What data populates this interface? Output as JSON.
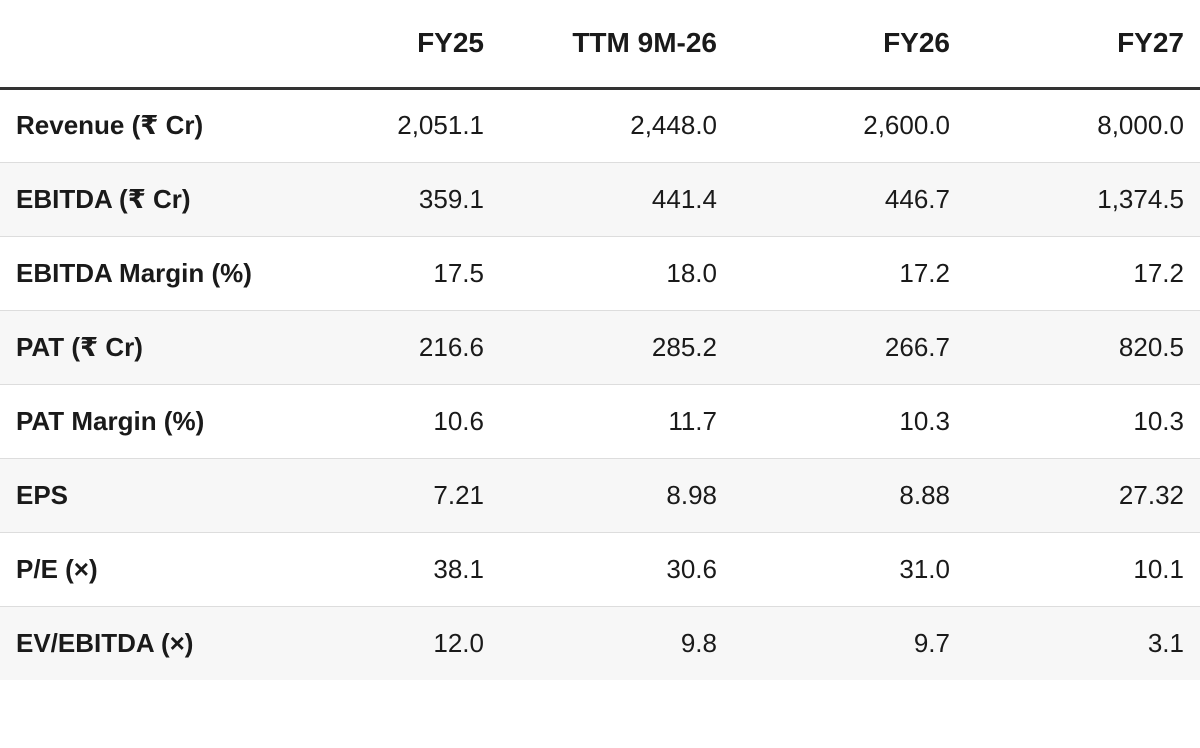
{
  "table": {
    "headers": [
      "",
      "FY25",
      "TTM 9M-26",
      "FY26",
      "FY27"
    ],
    "rows": [
      {
        "label": "Revenue (₹ Cr)",
        "values": [
          "2,051.1",
          "2,448.0",
          "2,600.0",
          "8,000.0"
        ]
      },
      {
        "label": "EBITDA (₹ Cr)",
        "values": [
          "359.1",
          "441.4",
          "446.7",
          "1,374.5"
        ]
      },
      {
        "label": "EBITDA Margin (%)",
        "values": [
          "17.5",
          "18.0",
          "17.2",
          "17.2"
        ]
      },
      {
        "label": "PAT (₹ Cr)",
        "values": [
          "216.6",
          "285.2",
          "266.7",
          "820.5"
        ]
      },
      {
        "label": "PAT Margin (%)",
        "values": [
          "10.6",
          "11.7",
          "10.3",
          "10.3"
        ]
      },
      {
        "label": "EPS",
        "values": [
          "7.21",
          "8.98",
          "8.88",
          "27.32"
        ]
      },
      {
        "label": "P/E (×)",
        "values": [
          "38.1",
          "30.6",
          "31.0",
          "10.1"
        ]
      },
      {
        "label": "EV/EBITDA (×)",
        "values": [
          "12.0",
          "9.8",
          "9.7",
          "3.1"
        ]
      }
    ]
  },
  "colors": {
    "header_rule": "#333333",
    "row_divider": "#dddddd",
    "stripe": "#f7f7f7",
    "text": "#1a1a1a"
  }
}
